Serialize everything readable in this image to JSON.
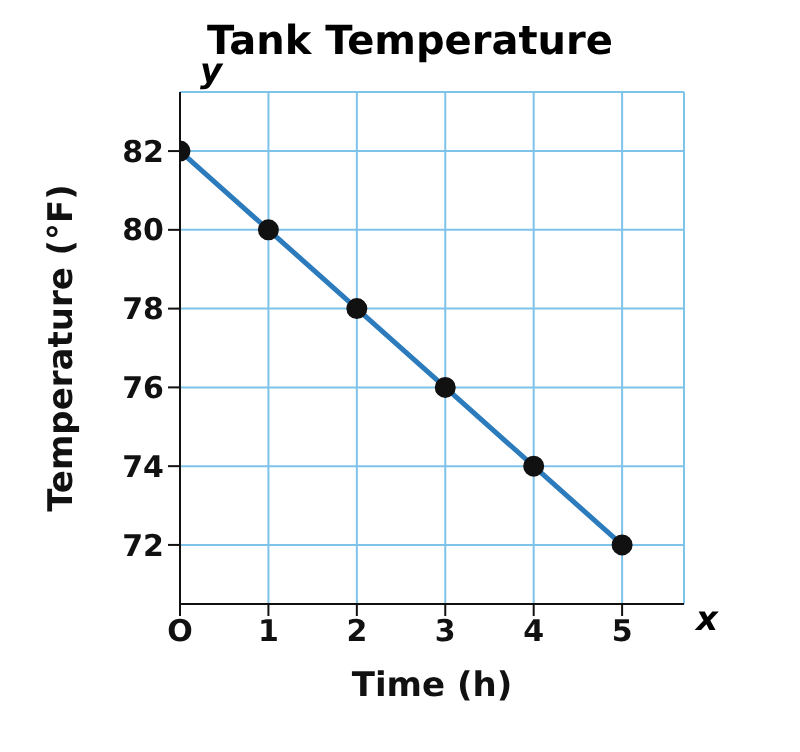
{
  "chart_data": {
    "type": "line",
    "title": "Tank Temperature",
    "xlabel": "Time (h)",
    "ylabel": "Temperature (°F)",
    "x": [
      0,
      1,
      2,
      3,
      4,
      5
    ],
    "series": [
      {
        "color": "#2b7bbd",
        "values": [
          82,
          80,
          78,
          76,
          74,
          72
        ]
      }
    ],
    "xlim": [
      0,
      5.7
    ],
    "xticks": [
      {
        "value": 0,
        "label": "O"
      },
      1,
      2,
      3,
      4,
      5
    ],
    "ylim": [
      70.5,
      83.5
    ],
    "yticks": [
      72,
      74,
      76,
      78,
      80,
      82
    ],
    "grid": true,
    "marker": "circle",
    "line_style": "solid",
    "annotations": [
      "x",
      "y"
    ]
  }
}
